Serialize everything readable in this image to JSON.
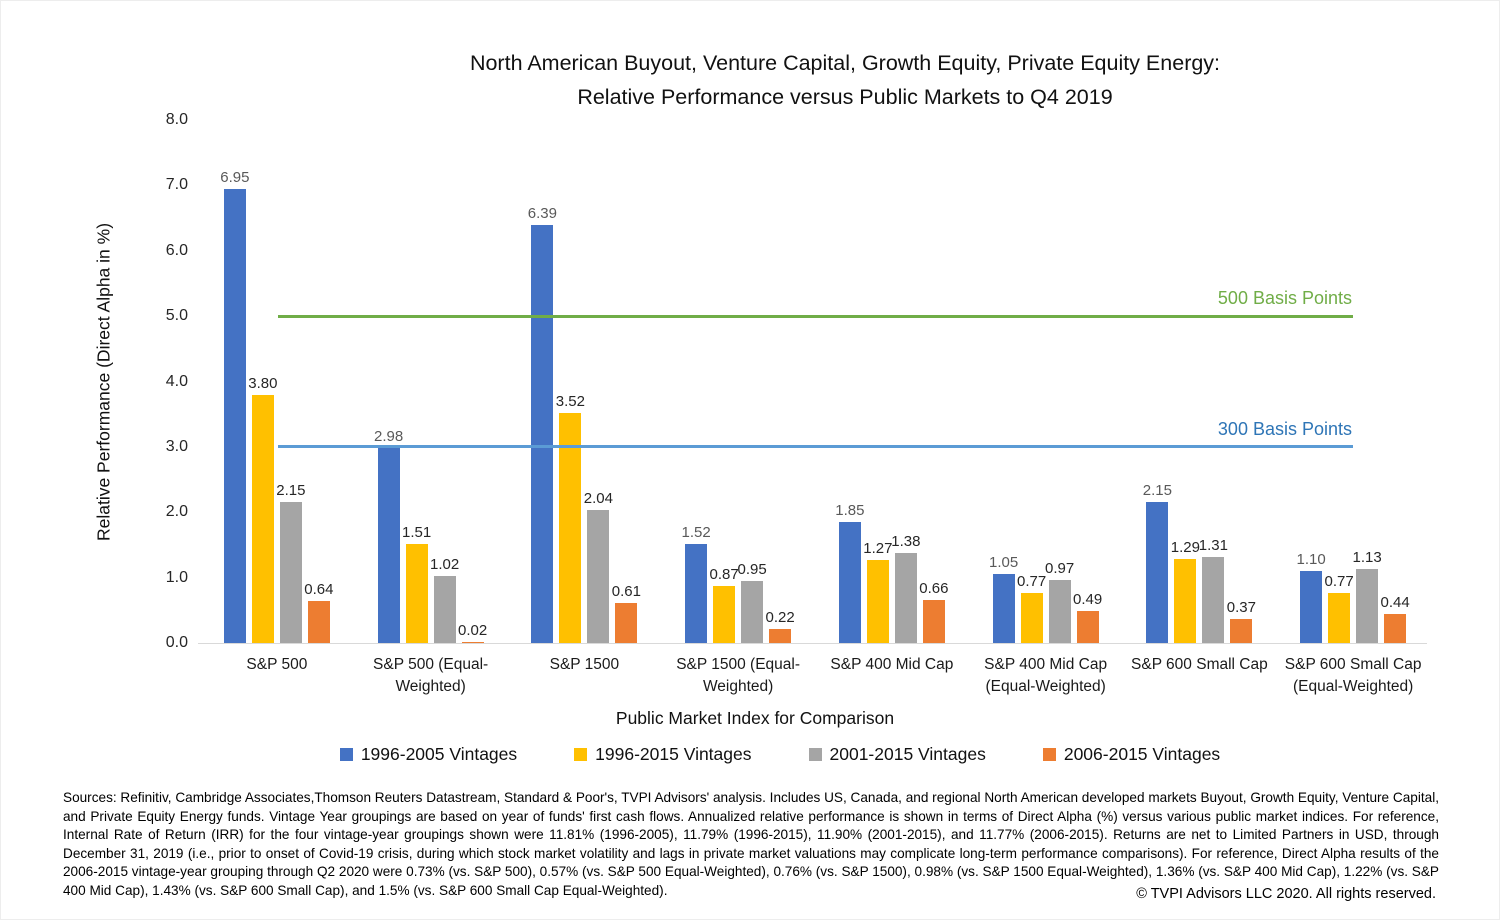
{
  "chart_data": {
    "type": "bar",
    "title": "North American Buyout, Venture Capital, Growth Equity, Private Equity Energy: Relative Performance versus Public Markets to Q4 2019",
    "title_line1": "North American Buyout, Venture Capital, Growth Equity, Private Equity Energy:",
    "title_line2": "Relative Performance versus Public Markets to Q4 2019",
    "xlabel": "Public Market Index for Comparison",
    "ylabel": "Relative Performance (Direct Alpha in %)",
    "ylim": [
      0,
      8
    ],
    "ytick_step": 1,
    "ytick_decimals": 1,
    "bar_label_decimals": 2,
    "grid": false,
    "legend_position": "bottom",
    "axis_line_color": "#d9d9d9",
    "categories": [
      "S&P 500",
      "S&P 500 (Equal-Weighted)",
      "S&P 1500",
      "S&P 1500 (Equal-Weighted)",
      "S&P 400 Mid Cap",
      "S&P 400 Mid Cap (Equal-Weighted)",
      "S&P 600 Small Cap",
      "S&P 600 Small Cap (Equal-Weighted)"
    ],
    "series": [
      {
        "name": "1996-2005 Vintages",
        "color": "#4472C4",
        "label_color": "#595959",
        "values": [
          6.95,
          2.98,
          6.39,
          1.52,
          1.85,
          1.05,
          2.15,
          1.1
        ]
      },
      {
        "name": "1996-2015 Vintages",
        "color": "#FFC000",
        "label_color": "#262626",
        "values": [
          3.8,
          1.51,
          3.52,
          0.87,
          1.27,
          0.77,
          1.29,
          0.77
        ]
      },
      {
        "name": "2001-2015 Vintages",
        "color": "#A5A5A5",
        "label_color": "#262626",
        "values": [
          2.15,
          1.02,
          2.04,
          0.95,
          1.38,
          0.97,
          1.31,
          1.13
        ]
      },
      {
        "name": "2006-2015 Vintages",
        "color": "#ED7D31",
        "label_color": "#262626",
        "values": [
          0.64,
          0.02,
          0.61,
          0.22,
          0.66,
          0.49,
          0.37,
          0.44
        ]
      }
    ],
    "reference_lines": [
      {
        "value": 5,
        "label": "500 Basis Points",
        "line_color": "#70AD47",
        "label_color": "#70AD47"
      },
      {
        "value": 3,
        "label": "300 Basis Points",
        "line_color": "#5B9BD5",
        "label_color": "#2E75B6"
      }
    ]
  },
  "footer": {
    "sources_text": "Sources:  Refinitiv, Cambridge Associates,Thomson Reuters Datastream, Standard & Poor's, TVPI Advisors' analysis.  Includes US, Canada, and regional North American developed markets Buyout, Growth Equity, Venture Capital, and Private Equity Energy funds. Vintage Year groupings are based on year of funds' first cash flows.  Annualized relative performance is shown in terms of Direct Alpha (%) versus various public market indices.  For reference, Internal Rate of Return (IRR) for the four vintage-year groupings shown were 11.81% (1996-2005), 11.79% (1996-2015), 11.90% (2001-2015), and 11.77% (2006-2015).  Returns are net to Limited Partners in USD, through December 31, 2019 (i.e., prior to onset of Covid-19 crisis, during which stock market volatility and lags in private market valuations may complicate long-term performance comparisons).  For reference, Direct Alpha results of the 2006-2015 vintage-year grouping through Q2 2020 were 0.73% (vs. S&P 500), 0.57% (vs. S&P 500 Equal-Weighted), 0.76% (vs. S&P 1500), 0.98% (vs. S&P 1500 Equal-Weighted), 1.36% (vs. S&P 400 Mid Cap), 1.22% (vs. S&P 400 Mid Cap), 1.43% (vs. S&P 600 Small Cap), and 1.5% (vs. S&P 600 Small Cap Equal-Weighted).",
    "copyright": "© TVPI Advisors LLC 2020.  All rights reserved."
  }
}
